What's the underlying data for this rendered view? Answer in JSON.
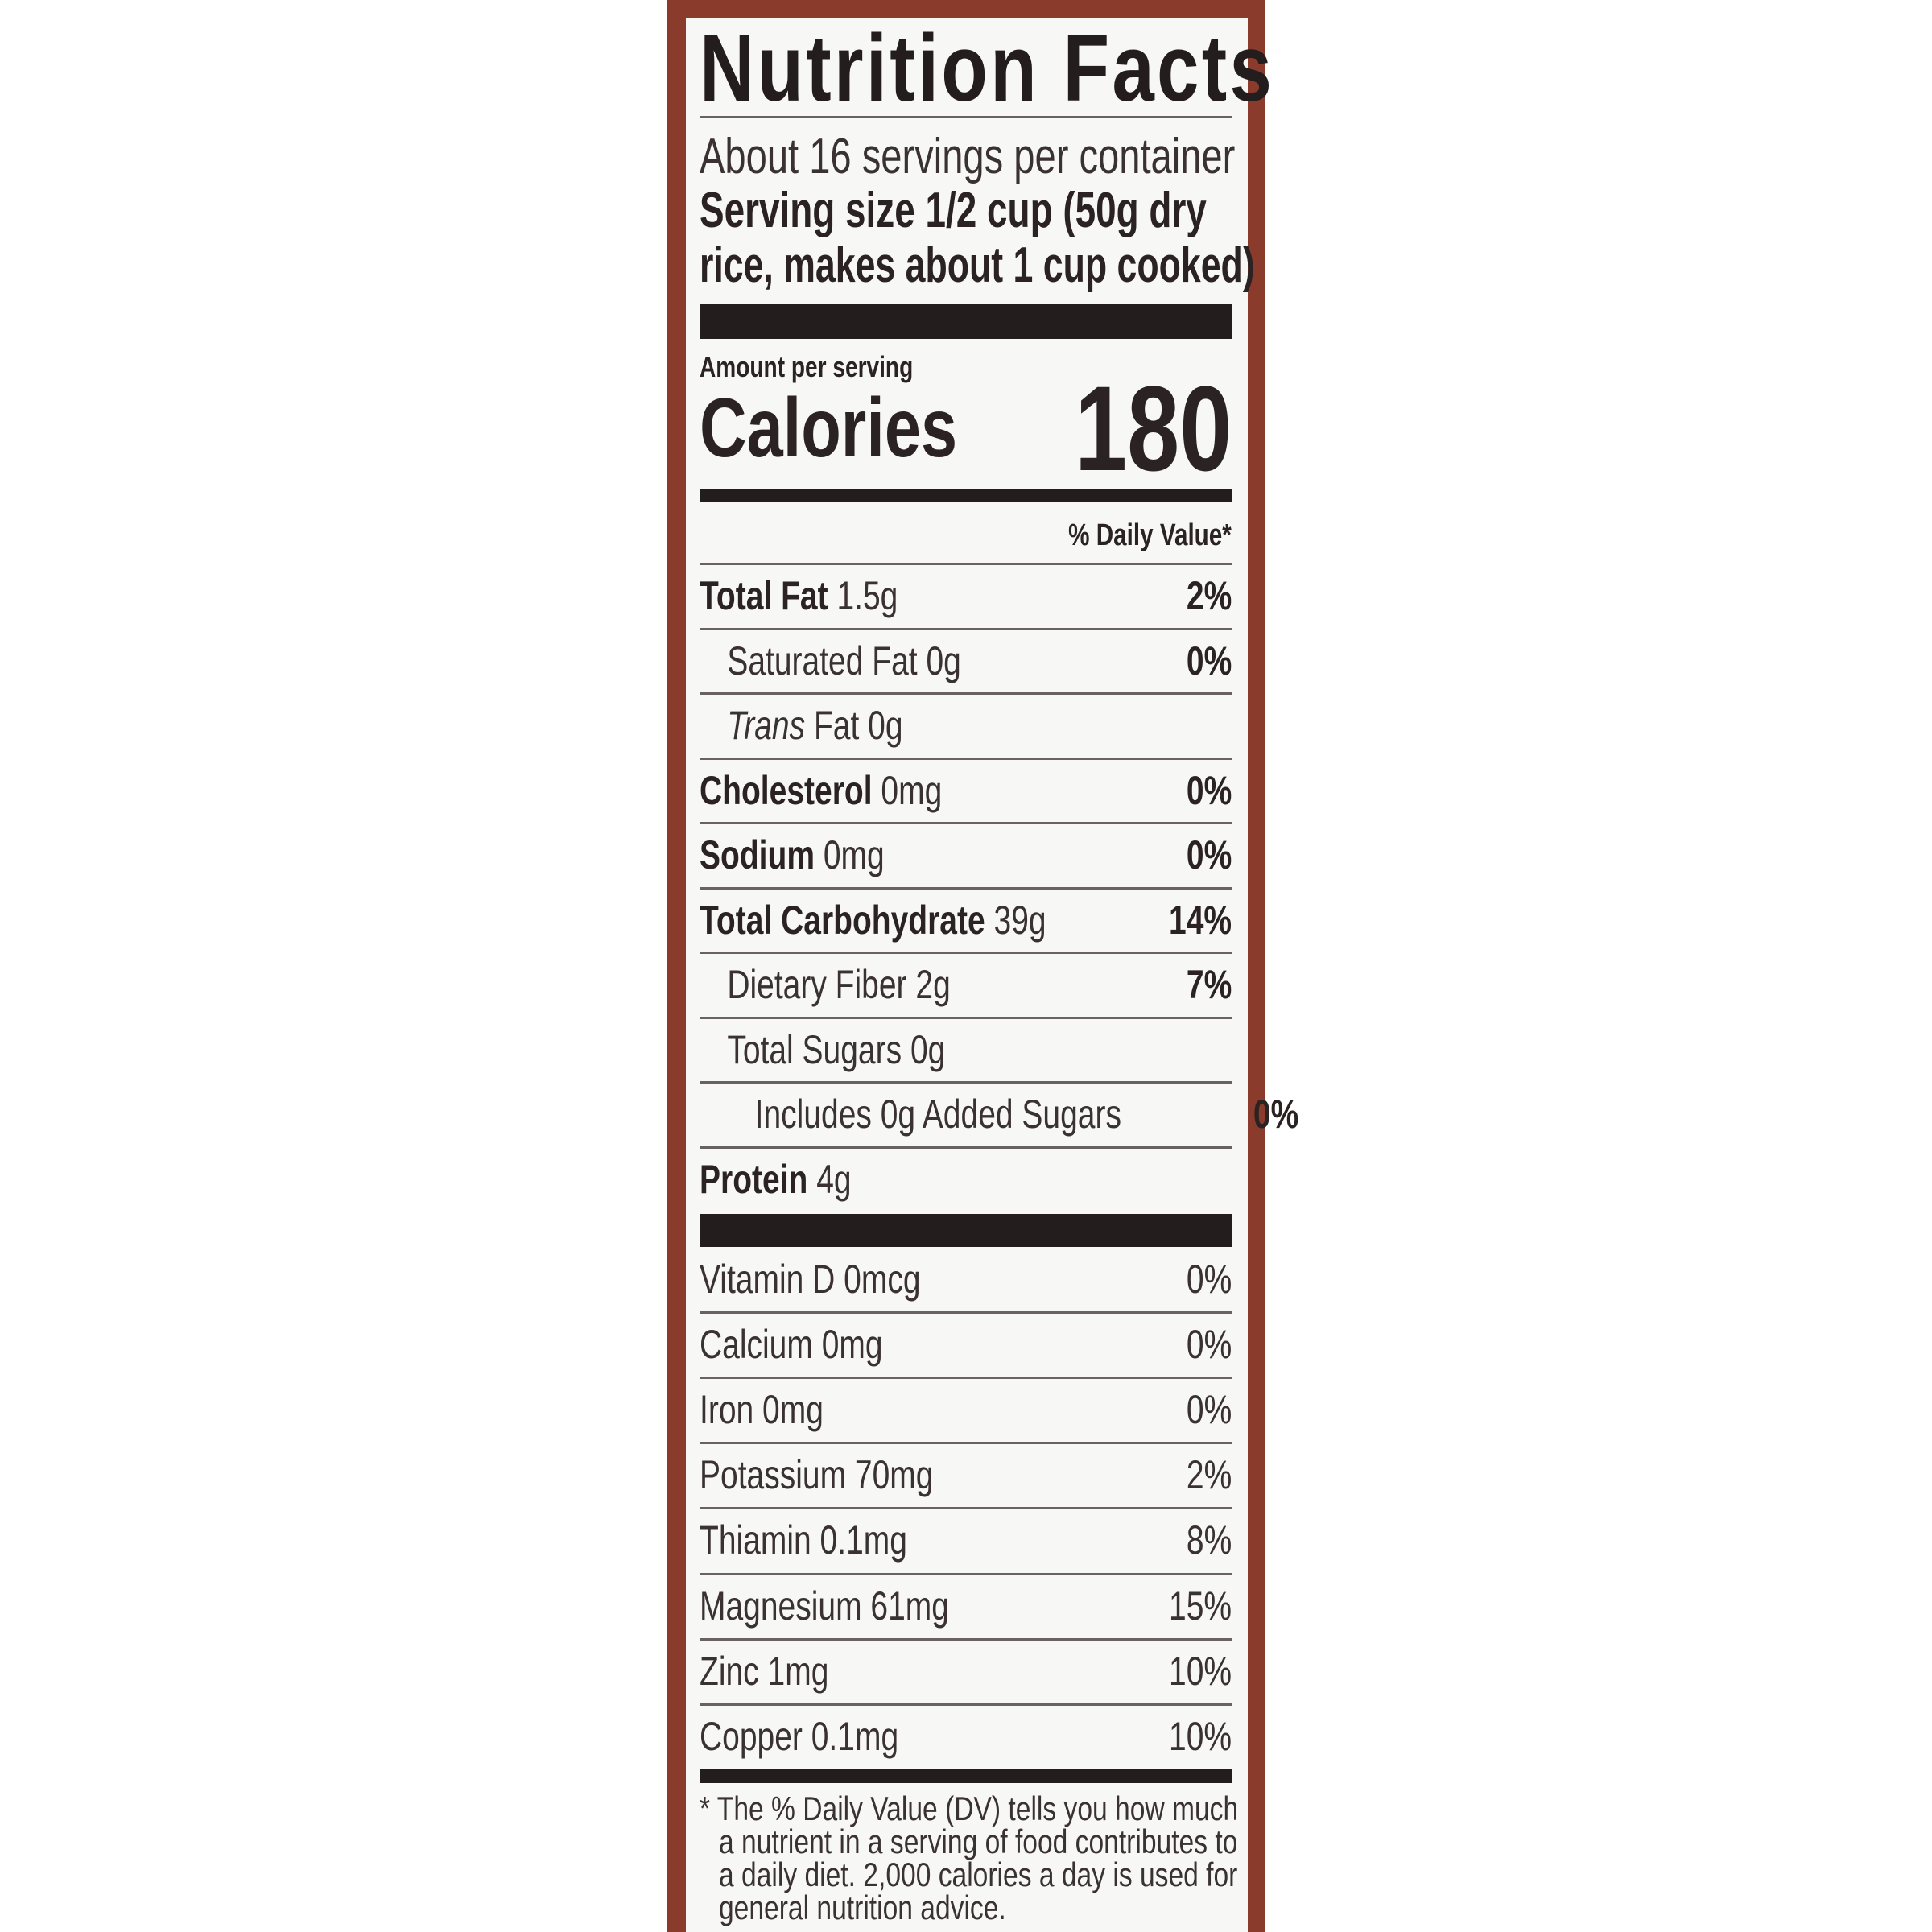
{
  "title": "Nutrition Facts",
  "servings_per_container": "About 16 servings per container",
  "serving_size_line1": "Serving size 1/2 cup (50g dry",
  "serving_size_line2": "rice, makes about 1 cup cooked)",
  "amount_per_serving": "Amount per serving",
  "calories_label": "Calories",
  "calories_value": "180",
  "daily_value_header": "% Daily Value*",
  "nutrients": [
    {
      "name": "Total Fat",
      "amount": "1.5g",
      "dv": "2%",
      "bold": true,
      "indent": 0
    },
    {
      "name": "Saturated Fat",
      "amount": "0g",
      "dv": "0%",
      "bold": false,
      "indent": 1
    },
    {
      "name": "Trans",
      "name_suffix": "Fat",
      "amount": "0g",
      "dv": "",
      "bold": false,
      "indent": 1,
      "italic": true
    },
    {
      "name": "Cholesterol",
      "amount": "0mg",
      "dv": "0%",
      "bold": true,
      "indent": 0
    },
    {
      "name": "Sodium",
      "amount": "0mg",
      "dv": "0%",
      "bold": true,
      "indent": 0
    },
    {
      "name": "Total Carbohydrate",
      "amount": "39g",
      "dv": "14%",
      "bold": true,
      "indent": 0
    },
    {
      "name": "Dietary Fiber",
      "amount": "2g",
      "dv": "7%",
      "bold": false,
      "indent": 1
    },
    {
      "name": "Total Sugars",
      "amount": "0g",
      "dv": "",
      "bold": false,
      "indent": 1
    },
    {
      "name": "Includes 0g Added Sugars",
      "amount": "",
      "dv": "0%",
      "bold": false,
      "indent": 2
    },
    {
      "name": "Protein",
      "amount": "4g",
      "dv": "",
      "bold": true,
      "indent": 0
    }
  ],
  "vitamins": [
    {
      "name": "Vitamin D 0mcg",
      "dv": "0%"
    },
    {
      "name": "Calcium 0mg",
      "dv": "0%"
    },
    {
      "name": "Iron 0mg",
      "dv": "0%"
    },
    {
      "name": "Potassium 70mg",
      "dv": "2%"
    },
    {
      "name": "Thiamin 0.1mg",
      "dv": "8%"
    },
    {
      "name": "Magnesium 61mg",
      "dv": "15%"
    },
    {
      "name": "Zinc 1mg",
      "dv": "10%"
    },
    {
      "name": "Copper 0.1mg",
      "dv": "10%"
    }
  ],
  "footnote": [
    "* The % Daily Value (DV) tells you how much",
    "a nutrient in a serving of food contributes to",
    "a daily diet. 2,000 calories a day is used for",
    "general nutrition advice."
  ],
  "colors": {
    "border": "#8b3b2b",
    "text": "#2b2323",
    "background": "#f7f7f5"
  }
}
